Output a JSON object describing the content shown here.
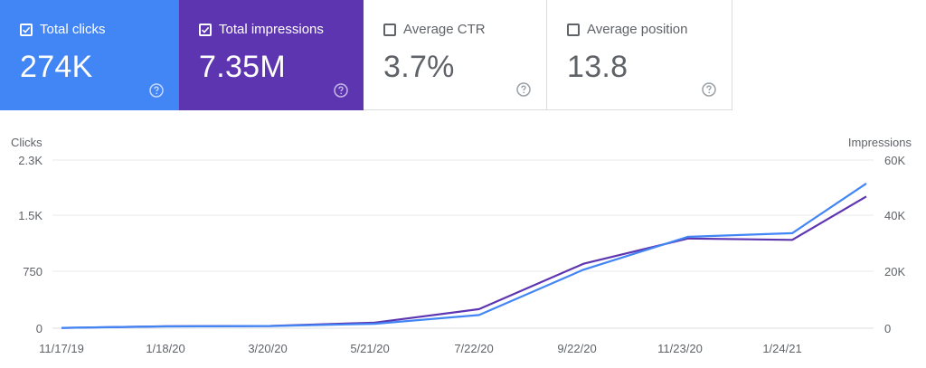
{
  "metrics": [
    {
      "label": "Total clicks",
      "value": "274K",
      "checked": true,
      "color": "#4285f4"
    },
    {
      "label": "Total impressions",
      "value": "7.35M",
      "checked": true,
      "color": "#5e35b1"
    },
    {
      "label": "Average CTR",
      "value": "3.7%",
      "checked": false,
      "color": "#ffffff"
    },
    {
      "label": "Average position",
      "value": "13.8",
      "checked": false,
      "color": "#ffffff"
    }
  ],
  "chart_data": {
    "type": "line",
    "ylabel_left": "Clicks",
    "ylabel_right": "Impressions",
    "ylim_left": [
      0,
      2300
    ],
    "ylim_right": [
      0,
      60000
    ],
    "yticks_left": [
      "2.3K",
      "1.5K",
      "750",
      "0"
    ],
    "yticks_right": [
      "60K",
      "40K",
      "20K",
      "0"
    ],
    "xticks": [
      "11/17/19",
      "1/18/20",
      "3/20/20",
      "5/21/20",
      "7/22/20",
      "9/22/20",
      "11/23/20",
      "1/24/21"
    ],
    "grid": true,
    "series": [
      {
        "name": "Clicks",
        "axis": "left",
        "color": "#4285f4",
        "x": [
          "11/17/19",
          "1/18/20",
          "3/20/20",
          "5/21/20",
          "7/22/20",
          "9/22/20",
          "11/23/20",
          "1/24/21",
          "3/9/21"
        ],
        "values": [
          5,
          25,
          30,
          60,
          180,
          800,
          1250,
          1300,
          1980
        ]
      },
      {
        "name": "Impressions",
        "axis": "right",
        "color": "#5e35b1",
        "x": [
          "11/17/19",
          "1/18/20",
          "3/20/20",
          "5/21/20",
          "7/22/20",
          "9/22/20",
          "11/23/20",
          "1/24/21",
          "3/9/21"
        ],
        "values": [
          100,
          700,
          800,
          2000,
          6800,
          23000,
          32000,
          31500,
          47000
        ]
      }
    ]
  }
}
